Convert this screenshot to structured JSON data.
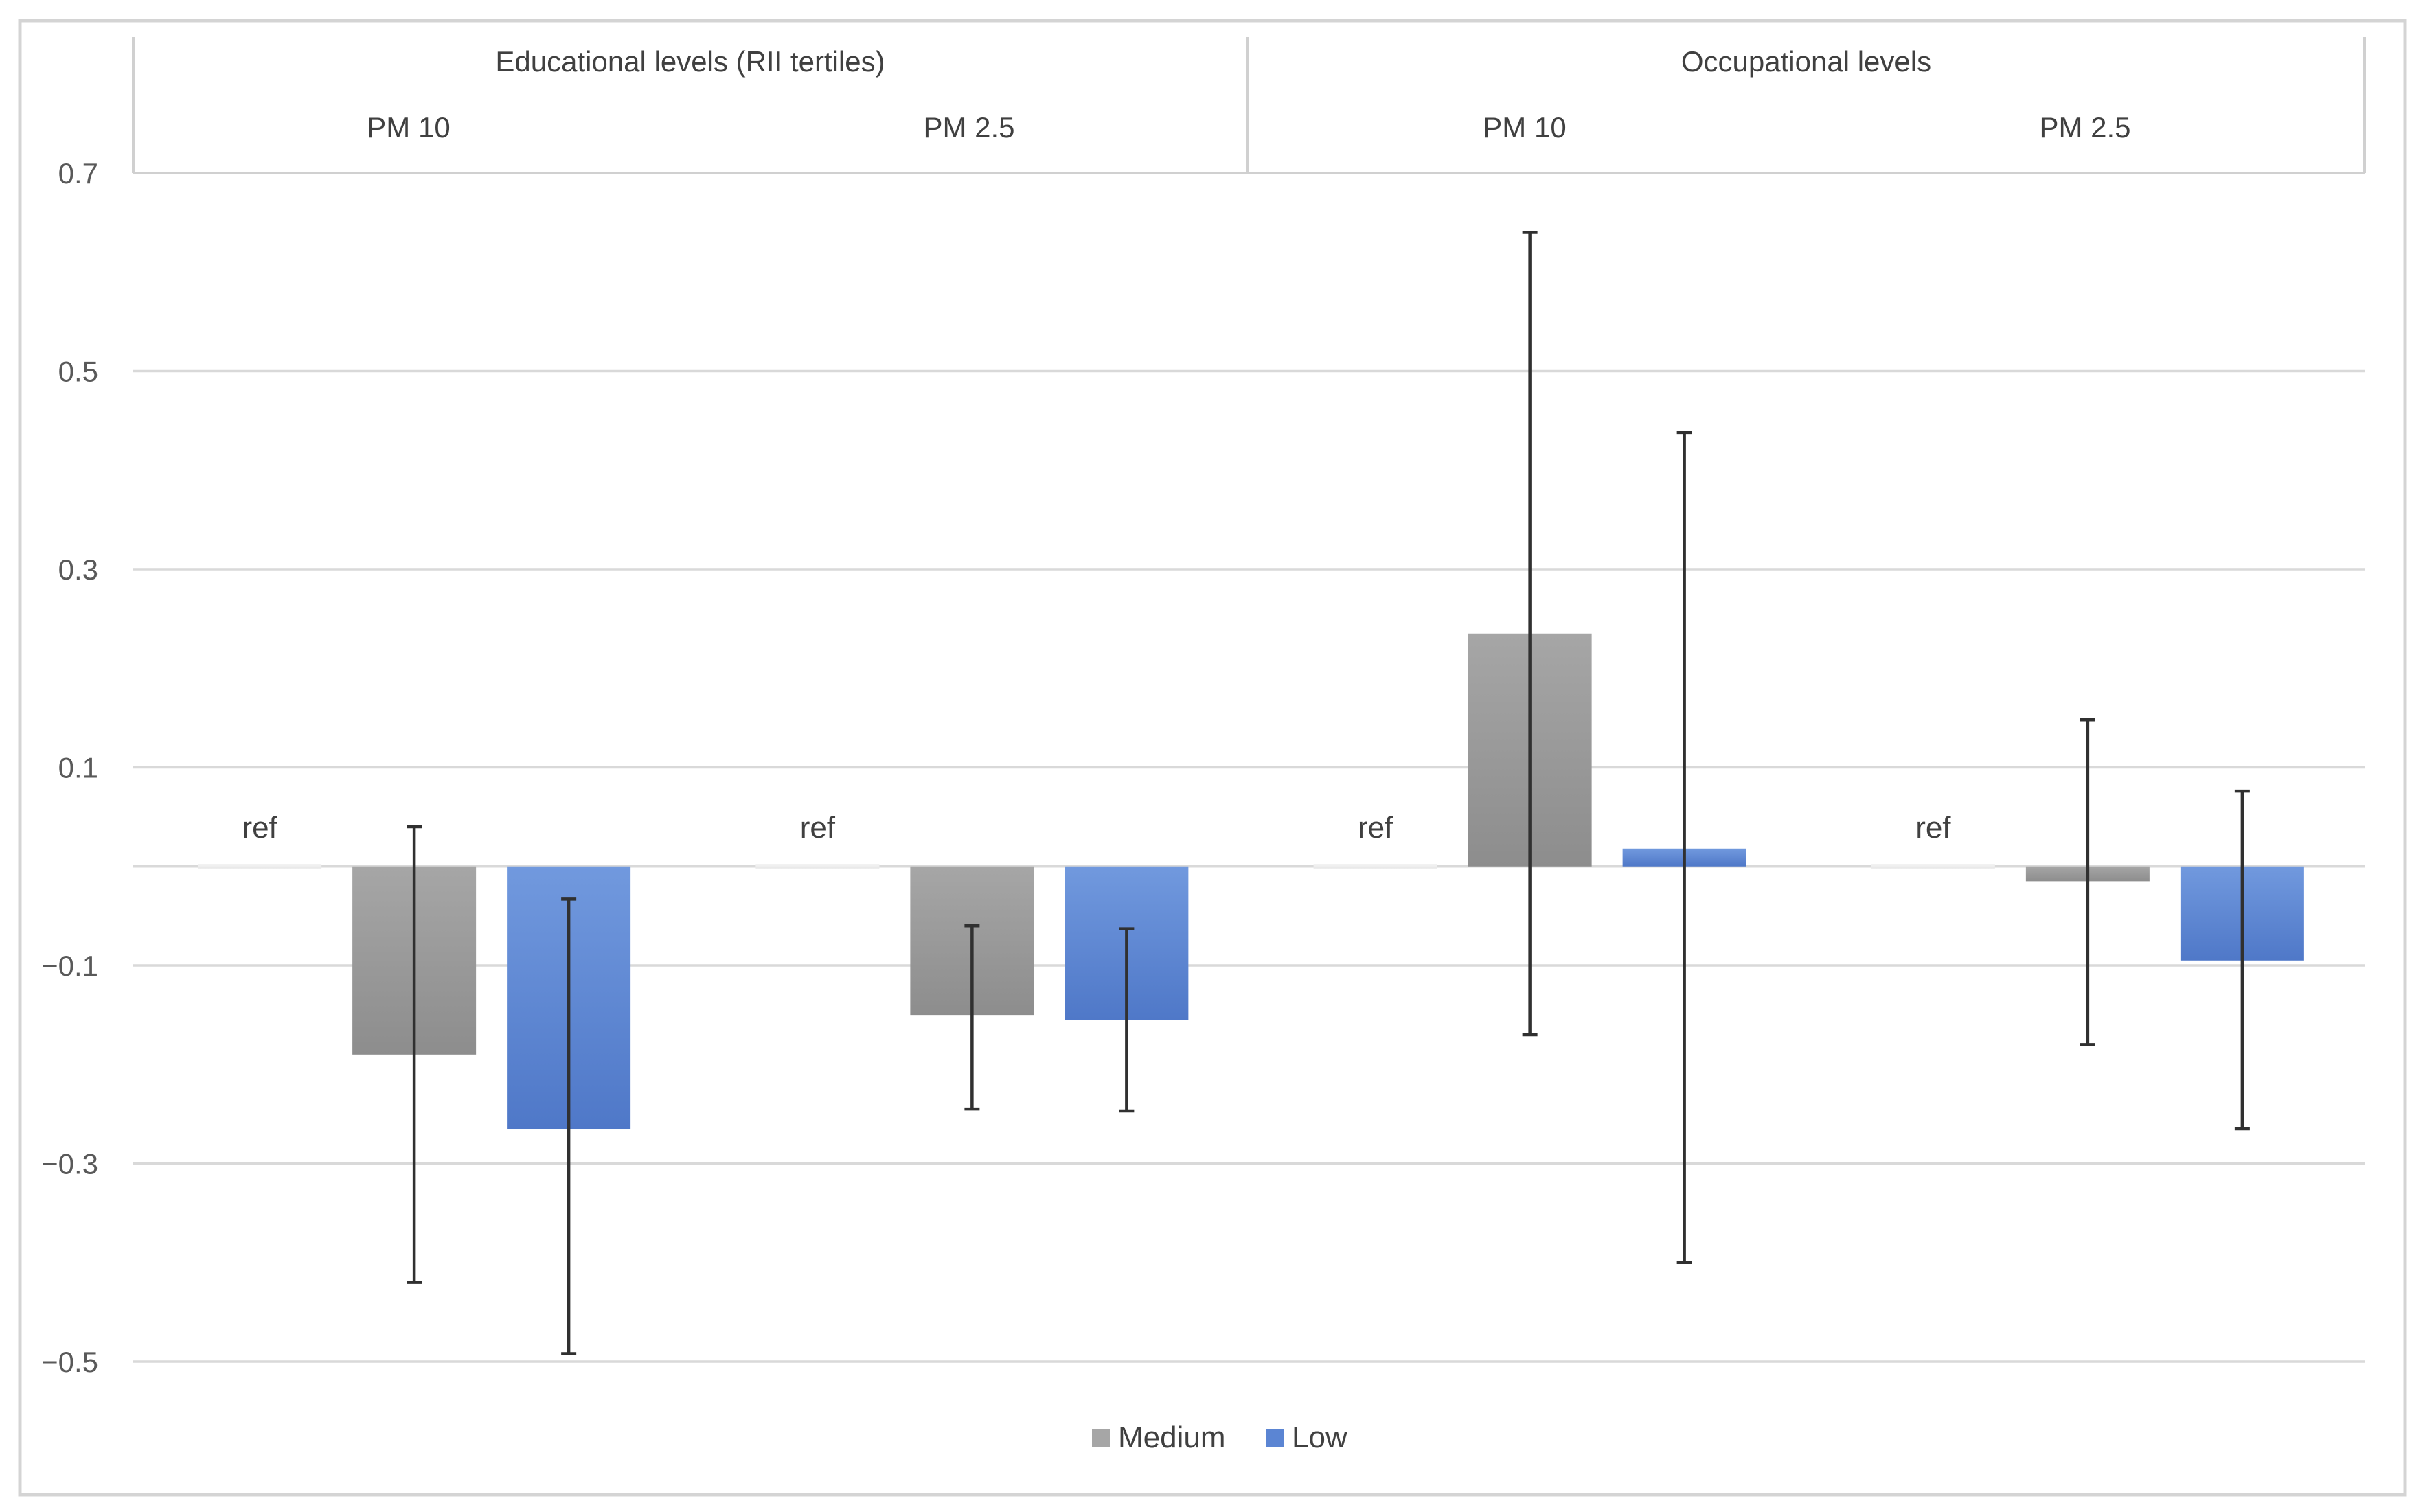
{
  "chart_data": {
    "type": "bar",
    "title": "",
    "xlabel": "",
    "ylabel": "",
    "ylim": [
      -0.5,
      0.7
    ],
    "zero_line": 0,
    "y_ticks": [
      {
        "value": 0.7,
        "label": "0.7"
      },
      {
        "value": 0.5,
        "label": "0.5"
      },
      {
        "value": 0.3,
        "label": "0.3"
      },
      {
        "value": 0.1,
        "label": "0.1"
      },
      {
        "value": -0.1,
        "label": "−0.1"
      },
      {
        "value": -0.3,
        "label": "−0.3"
      },
      {
        "value": -0.5,
        "label": "−0.5"
      }
    ],
    "grid": true,
    "top_groups": [
      {
        "label": "Educational levels (RII tertiles)"
      },
      {
        "label": "Occupational levels"
      }
    ],
    "categories": [
      "PM 10",
      "PM 2.5",
      "PM 10",
      "PM 2.5"
    ],
    "reference_label": "ref",
    "series": [
      {
        "name": "Medium",
        "color": "#a6a6a6",
        "values": [
          -0.19,
          -0.15,
          0.235,
          -0.015
        ],
        "ci_low": [
          -0.42,
          -0.245,
          -0.17,
          -0.18
        ],
        "ci_high": [
          0.04,
          -0.06,
          0.64,
          0.148
        ]
      },
      {
        "name": "Low",
        "color": "#6f96da",
        "values": [
          -0.265,
          -0.155,
          0.018,
          -0.095
        ],
        "ci_low": [
          -0.492,
          -0.247,
          -0.4,
          -0.265
        ],
        "ci_high": [
          -0.033,
          -0.063,
          0.438,
          0.076
        ]
      }
    ],
    "legend_position": "bottom-center",
    "colors": {
      "medium": "#a6a6a6",
      "low": "#6f96da",
      "grid": "#d9d9d9",
      "text": "#595959"
    }
  }
}
